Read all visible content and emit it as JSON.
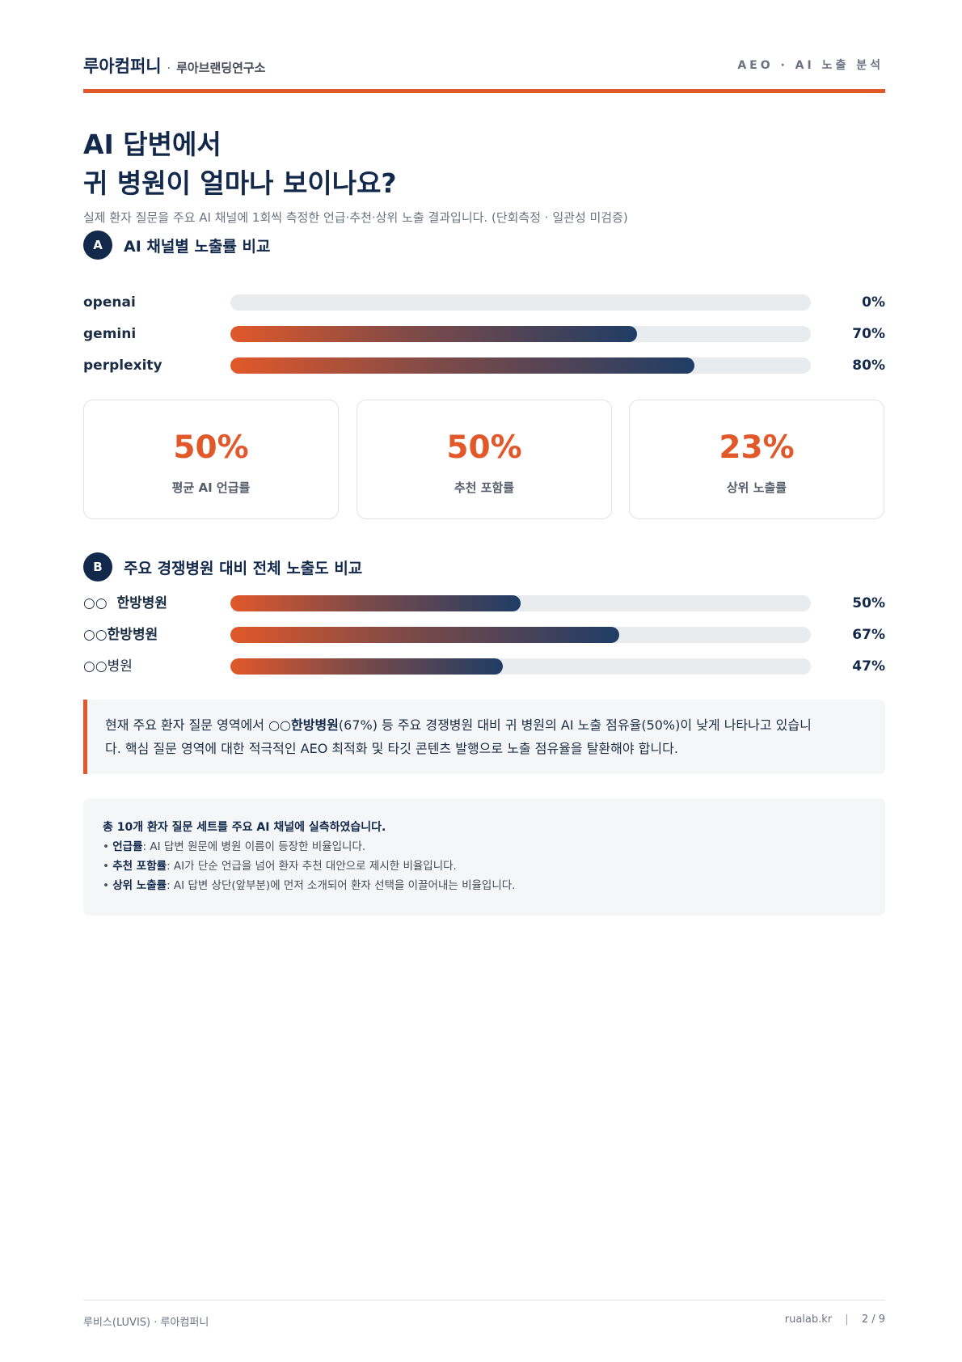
{
  "header": {
    "brand": "루아컴퍼니",
    "separator": "·",
    "sub": "루아브랜딩연구소",
    "right": "AEO · AI 노출 분석"
  },
  "title": {
    "line1": "AI 답변에서",
    "line2": "귀 병원이 얼마나 보이나요?"
  },
  "subtitle": "실제 환자 질문을 주요 AI 채널에 1회씩 측정한 언급·추천·상위 노출 결과입니다. (단회측정 · 일관성 미검증)",
  "sectionA": {
    "badge": "A",
    "title": "AI 채널별 노출률 비교",
    "rows": [
      {
        "label": "openai",
        "value_text": "0%",
        "value": 0
      },
      {
        "label": "gemini",
        "value_text": "70%",
        "value": 70
      },
      {
        "label": "perplexity",
        "value_text": "80%",
        "value": 80
      }
    ]
  },
  "cards": [
    {
      "value": "50%",
      "label": "평균 AI 언급률"
    },
    {
      "value": "50%",
      "label": "추천 포함률"
    },
    {
      "value": "23%",
      "label": "상위 노출률"
    }
  ],
  "sectionB": {
    "badge": "B",
    "title": "주요 경쟁병원 대비 전체 노출도 비교",
    "rows": [
      {
        "label": "○○  한방병원",
        "value_text": "50%",
        "value": 50
      },
      {
        "label": "○○한방병원",
        "value_text": "67%",
        "value": 67
      },
      {
        "label": "○○병원",
        "value_text": "47%",
        "value": 47
      }
    ]
  },
  "callout": {
    "part1": "현재 주요 환자 질문 영역에서 ○○",
    "bold": "한방병원",
    "part2": "(67%) 등 주요 경쟁병원 대비 귀 병원의 AI 노출 점유율(50%)이 낮게 나타나고 있습니",
    "line2": "다. 핵심 질문 영역에 대한 적극적인 AEO 최적화 및 타깃 콘텐츠 발행으로 노출 점유율을 탈환해야 합니다."
  },
  "notes": {
    "lead": "총 10개 환자 질문 세트를 주요 AI 채널에 실측하였습니다.",
    "items": [
      {
        "bullet": "•",
        "term": "언급률",
        "desc": ": AI 답변 원문에 병원 이름이 등장한 비율입니다."
      },
      {
        "bullet": "•",
        "term": "추천 포함률",
        "desc": ": AI가 단순 언급을 넘어 환자 추천 대안으로 제시한 비율입니다."
      },
      {
        "bullet": "•",
        "term": "상위 노출률",
        "desc": ": AI 답변 상단(앞부분)에 먼저 소개되어 환자 선택을 이끌어내는 비율입니다."
      }
    ]
  },
  "footer": {
    "left": "루비스(LUVIS) · 루아컴퍼니",
    "site": "rualab.kr",
    "pipe": "|",
    "page": "2 / 9"
  },
  "colors": {
    "accent": "#e1582a",
    "navy": "#13294b",
    "track": "#e8ecef"
  }
}
